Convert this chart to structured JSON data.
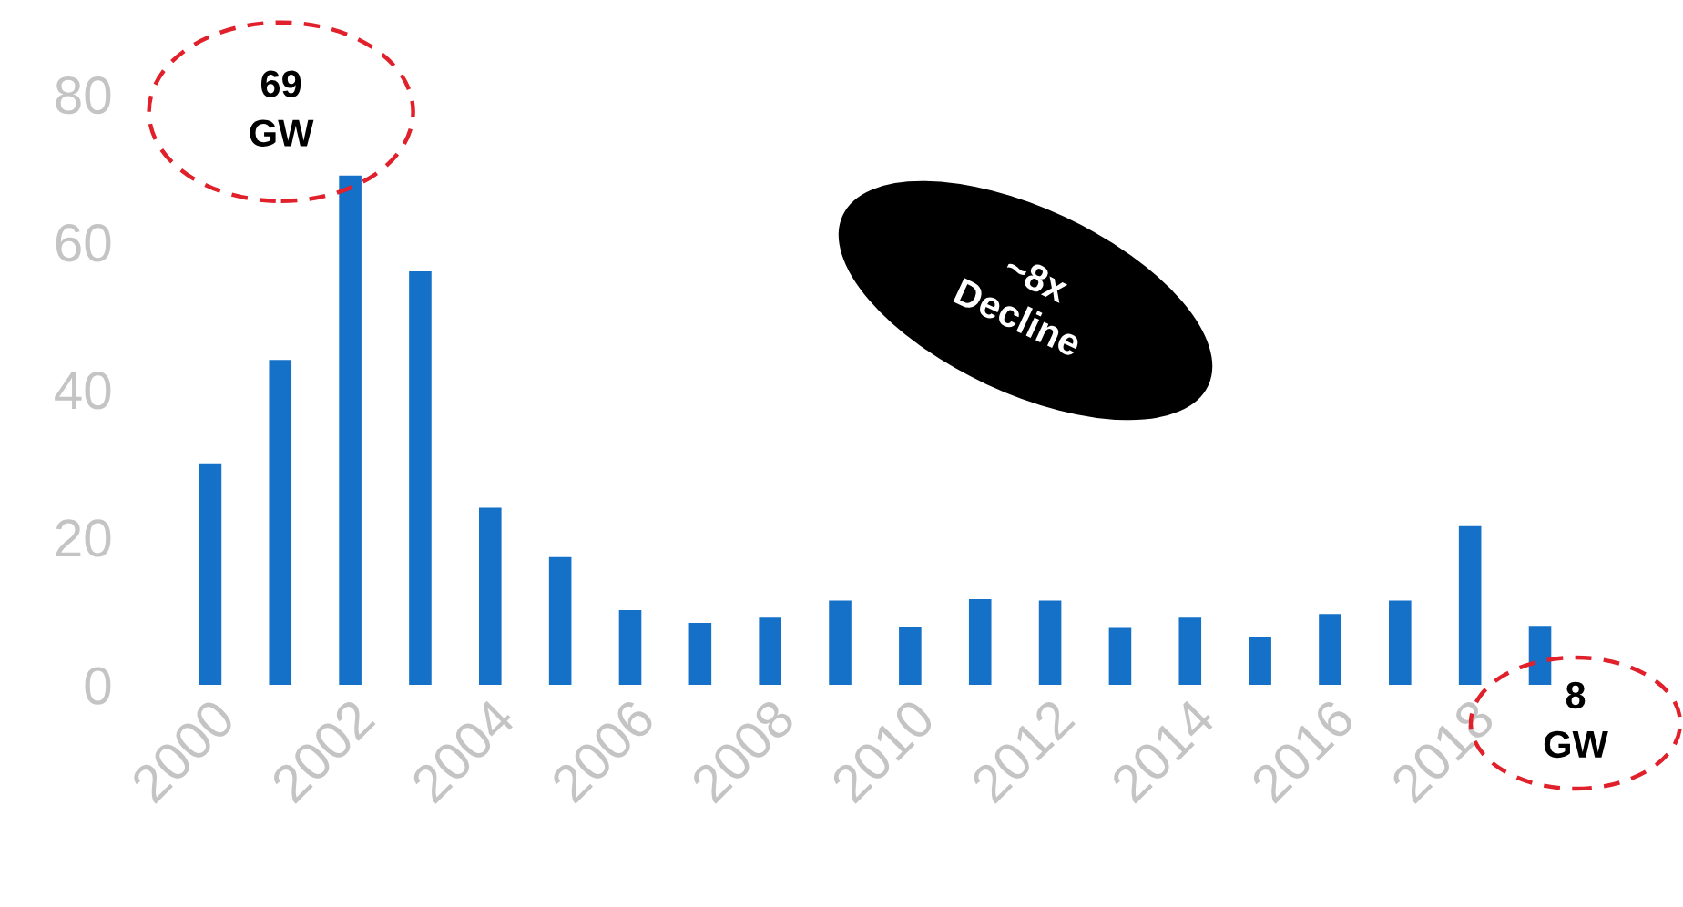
{
  "chart_data": {
    "type": "bar",
    "categories": [
      "2000",
      null,
      "2002",
      null,
      "2004",
      null,
      "2006",
      null,
      "2008",
      null,
      "2010",
      null,
      "2012",
      null,
      "2014",
      null,
      "2016",
      null,
      "2018",
      null
    ],
    "values": [
      30,
      44,
      69,
      56,
      24,
      17.3,
      10.1,
      8.4,
      9.1,
      11.4,
      7.9,
      11.6,
      11.4,
      7.7,
      9.1,
      6.4,
      9.6,
      11.4,
      21.5,
      8
    ],
    "color": "#1570c8",
    "ylim": [
      0,
      80
    ],
    "yticks": [
      0,
      20,
      40,
      60,
      80
    ],
    "grid": false,
    "legend": false,
    "annotations": [
      {
        "text": "69\nGW",
        "x": "2002",
        "y": 69
      },
      "8\nGW",
      "~8x\nDecline"
    ]
  }
}
